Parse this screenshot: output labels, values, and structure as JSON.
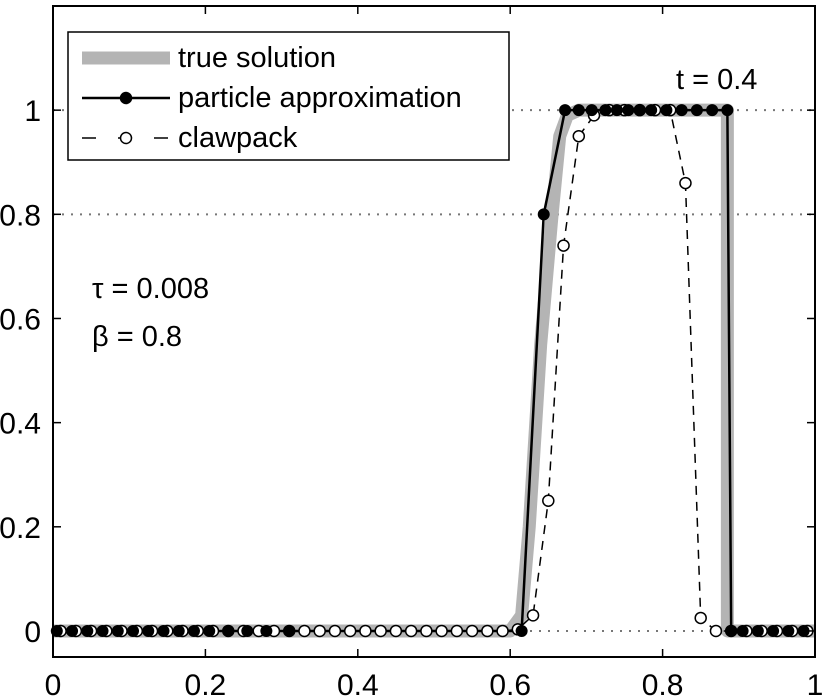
{
  "chart_data": {
    "type": "line",
    "xlim": [
      0,
      1
    ],
    "ylim": [
      -0.05,
      1.2
    ],
    "x_ticks": [
      {
        "v": 0,
        "label": "0"
      },
      {
        "v": 0.2,
        "label": "0.2"
      },
      {
        "v": 0.4,
        "label": "0.4"
      },
      {
        "v": 0.6,
        "label": "0.6"
      },
      {
        "v": 0.8,
        "label": "0.8"
      },
      {
        "v": 1,
        "label": "1"
      }
    ],
    "y_ticks": [
      {
        "v": 0,
        "label": "0"
      },
      {
        "v": 0.2,
        "label": "0.2"
      },
      {
        "v": 0.4,
        "label": "0.4"
      },
      {
        "v": 0.6,
        "label": "0.6"
      },
      {
        "v": 0.8,
        "label": "0.8"
      },
      {
        "v": 1,
        "label": "1"
      }
    ],
    "reference_lines": [
      0,
      0.8,
      1
    ],
    "grid": false,
    "legend_position": "top-left",
    "annotations": {
      "time": "t = 0.4",
      "tau": "τ = 0.008",
      "beta": "β = 0.8"
    },
    "series": [
      {
        "name": "true solution",
        "style": "thick-solid",
        "color": "#b4b4b4",
        "x": [
          0,
          0.6,
          0.615,
          0.625,
          0.64,
          0.655,
          0.665,
          0.675,
          0.69,
          0.885,
          0.885,
          0.89,
          1.0
        ],
        "y": [
          0,
          0,
          0.03,
          0.2,
          0.55,
          0.8,
          0.95,
          0.99,
          1,
          1,
          0,
          0,
          0
        ]
      },
      {
        "name": "particle approximation",
        "style": "solid-filled-markers",
        "color": "#000000",
        "x": [
          0.005,
          0.025,
          0.045,
          0.065,
          0.085,
          0.105,
          0.125,
          0.145,
          0.165,
          0.185,
          0.205,
          0.23,
          0.255,
          0.28,
          0.31,
          0.615,
          0.644,
          0.672,
          0.69,
          0.707,
          0.725,
          0.74,
          0.755,
          0.77,
          0.785,
          0.805,
          0.825,
          0.845,
          0.865,
          0.885,
          0.89,
          0.905,
          0.925,
          0.945,
          0.965,
          0.985
        ],
        "y": [
          0,
          0,
          0,
          0,
          0,
          0,
          0,
          0,
          0,
          0,
          0,
          0,
          0,
          0,
          0,
          0,
          0.8,
          1,
          1,
          1,
          1,
          1,
          1,
          1,
          1,
          1,
          1,
          1,
          1,
          1,
          0,
          0,
          0,
          0,
          0,
          0
        ]
      },
      {
        "name": "clawpack",
        "style": "dashed-open-markers",
        "color": "#000000",
        "x": [
          0.01,
          0.03,
          0.05,
          0.07,
          0.09,
          0.11,
          0.13,
          0.15,
          0.17,
          0.19,
          0.21,
          0.23,
          0.25,
          0.27,
          0.29,
          0.31,
          0.33,
          0.35,
          0.37,
          0.39,
          0.41,
          0.43,
          0.45,
          0.47,
          0.49,
          0.51,
          0.53,
          0.55,
          0.57,
          0.59,
          0.61,
          0.63,
          0.65,
          0.67,
          0.69,
          0.71,
          0.73,
          0.75,
          0.77,
          0.79,
          0.81,
          0.83,
          0.85,
          0.87,
          0.89,
          0.91,
          0.93,
          0.95,
          0.97,
          0.99
        ],
        "y": [
          0,
          0,
          0,
          0,
          0,
          0,
          0,
          0,
          0,
          0,
          0,
          0,
          0,
          0,
          0,
          0,
          0,
          0,
          0,
          0,
          0,
          0,
          0,
          0,
          0,
          0,
          0,
          0,
          0,
          0,
          0.003,
          0.03,
          0.25,
          0.74,
          0.95,
          0.99,
          1,
          1,
          1,
          1,
          1,
          0.86,
          0.025,
          0,
          0,
          0,
          0,
          0,
          0,
          0
        ]
      }
    ]
  }
}
